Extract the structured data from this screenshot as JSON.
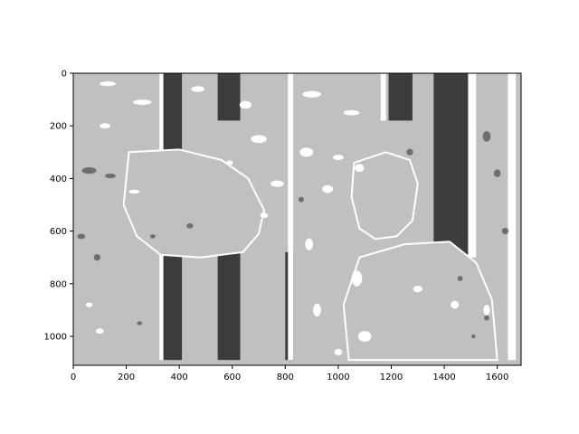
{
  "chart_data": {
    "type": "heatmap",
    "title": "",
    "xlabel": "",
    "ylabel": "",
    "xlim": [
      0,
      1690
    ],
    "ylim": [
      1110,
      0
    ],
    "y_axis_inverted": true,
    "xticks": [
      0,
      200,
      400,
      600,
      800,
      1000,
      1200,
      1400,
      1600
    ],
    "yticks": [
      0,
      200,
      400,
      600,
      800,
      1000
    ],
    "grid": false,
    "legend": "none",
    "colormap": "grayscale",
    "colors": {
      "background": "#c0c0c0",
      "light": "#ffffff",
      "dark": "#1e1e1e",
      "mid": "#6e6e6e"
    },
    "regions": {
      "dark_columns": [
        {
          "x0": 335,
          "x1": 410,
          "y0": 0,
          "y1": 540
        },
        {
          "x0": 335,
          "x1": 410,
          "y0": 670,
          "y1": 1090
        },
        {
          "x0": 545,
          "x1": 630,
          "y0": 0,
          "y1": 180
        },
        {
          "x0": 545,
          "x1": 630,
          "y0": 680,
          "y1": 1090
        },
        {
          "x0": 1190,
          "x1": 1280,
          "y0": 0,
          "y1": 180
        },
        {
          "x0": 1360,
          "x1": 1490,
          "y0": 0,
          "y1": 700
        },
        {
          "x0": 800,
          "x1": 830,
          "y0": 680,
          "y1": 1090
        }
      ],
      "light_columns": [
        {
          "x0": 325,
          "x1": 340,
          "y0": 0,
          "y1": 1090
        },
        {
          "x0": 810,
          "x1": 830,
          "y0": 0,
          "y1": 1090
        },
        {
          "x0": 1160,
          "x1": 1180,
          "y0": 0,
          "y1": 180
        },
        {
          "x0": 1490,
          "x1": 1520,
          "y0": 0,
          "y1": 700
        },
        {
          "x0": 1640,
          "x1": 1670,
          "y0": 0,
          "y1": 1090
        }
      ],
      "light_blobs": [
        [
          130,
          40,
          60,
          18
        ],
        [
          260,
          110,
          70,
          20
        ],
        [
          470,
          60,
          50,
          22
        ],
        [
          650,
          120,
          45,
          30
        ],
        [
          900,
          80,
          70,
          25
        ],
        [
          1050,
          150,
          60,
          20
        ],
        [
          120,
          200,
          40,
          20
        ],
        [
          700,
          250,
          60,
          30
        ],
        [
          880,
          300,
          50,
          35
        ],
        [
          1000,
          320,
          40,
          20
        ],
        [
          960,
          440,
          40,
          30
        ],
        [
          1080,
          360,
          35,
          30
        ],
        [
          770,
          420,
          50,
          25
        ],
        [
          720,
          540,
          30,
          20
        ],
        [
          890,
          650,
          30,
          45
        ],
        [
          1070,
          780,
          40,
          60
        ],
        [
          920,
          900,
          30,
          50
        ],
        [
          1100,
          1000,
          50,
          40
        ],
        [
          1000,
          1060,
          30,
          25
        ],
        [
          100,
          980,
          30,
          20
        ],
        [
          60,
          880,
          25,
          18
        ],
        [
          1560,
          900,
          25,
          40
        ],
        [
          1300,
          820,
          35,
          25
        ],
        [
          1440,
          880,
          30,
          30
        ],
        [
          230,
          450,
          40,
          15
        ],
        [
          590,
          340,
          25,
          18
        ]
      ],
      "dark_speckles": [
        [
          60,
          370,
          55,
          25
        ],
        [
          140,
          390,
          40,
          18
        ],
        [
          30,
          620,
          30,
          20
        ],
        [
          90,
          700,
          25,
          25
        ],
        [
          1560,
          240,
          30,
          40
        ],
        [
          1600,
          380,
          25,
          30
        ],
        [
          1630,
          600,
          25,
          25
        ],
        [
          1460,
          780,
          20,
          20
        ],
        [
          1560,
          930,
          20,
          20
        ],
        [
          1510,
          1000,
          15,
          15
        ],
        [
          1270,
          300,
          25,
          25
        ],
        [
          860,
          480,
          20,
          20
        ],
        [
          440,
          580,
          25,
          20
        ],
        [
          300,
          620,
          20,
          15
        ],
        [
          250,
          950,
          20,
          15
        ]
      ],
      "figure_shapes": {
        "arm": [
          [
            210,
            300
          ],
          [
            400,
            290
          ],
          [
            560,
            330
          ],
          [
            660,
            400
          ],
          [
            720,
            520
          ],
          [
            700,
            610
          ],
          [
            640,
            680
          ],
          [
            480,
            700
          ],
          [
            330,
            690
          ],
          [
            240,
            620
          ],
          [
            190,
            500
          ]
        ],
        "face": [
          [
            1060,
            340
          ],
          [
            1180,
            300
          ],
          [
            1270,
            330
          ],
          [
            1300,
            420
          ],
          [
            1280,
            560
          ],
          [
            1220,
            620
          ],
          [
            1140,
            630
          ],
          [
            1080,
            590
          ],
          [
            1050,
            470
          ]
        ],
        "shoulder": [
          [
            1080,
            700
          ],
          [
            1250,
            650
          ],
          [
            1420,
            640
          ],
          [
            1520,
            720
          ],
          [
            1580,
            860
          ],
          [
            1600,
            1090
          ],
          [
            1040,
            1090
          ],
          [
            1020,
            880
          ]
        ]
      }
    }
  }
}
